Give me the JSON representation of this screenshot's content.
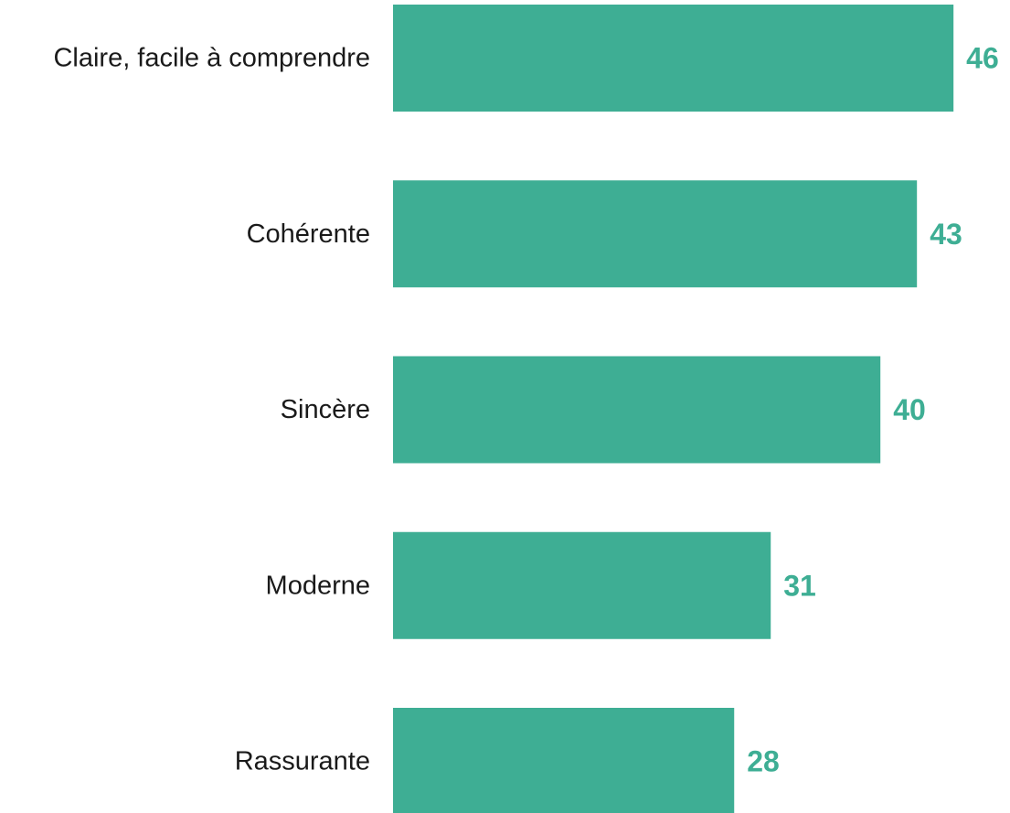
{
  "chart_data": {
    "type": "bar",
    "orientation": "horizontal",
    "categories": [
      "Claire, facile à comprendre",
      "Cohérente",
      "Sincère",
      "Moderne",
      "Rassurante"
    ],
    "values": [
      46,
      43,
      40,
      31,
      28
    ],
    "value_labels": [
      "46",
      "43",
      "40",
      "31",
      "28"
    ],
    "title": "",
    "xlabel": "",
    "ylabel": "",
    "xlim": [
      0,
      46
    ],
    "grid": false,
    "legend": "none",
    "colors": {
      "bar": "#3eae94",
      "value_label": "#3eae94",
      "category_label": "#1a1a1a"
    }
  }
}
